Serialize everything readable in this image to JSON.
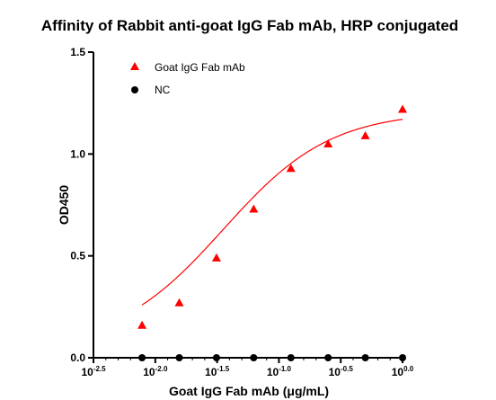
{
  "chart_data": {
    "type": "scatter",
    "title": "Affinity of  Rabbit anti-goat IgG Fab mAb, HRP conjugated",
    "xlabel": "Goat IgG Fab mAb (μg/mL)",
    "ylabel": "OD450",
    "x_scale": "log10",
    "xlim": [
      0.00316,
      1.0
    ],
    "ylim": [
      0.0,
      1.5
    ],
    "x_ticks": [
      {
        "base": "10",
        "exp": "-2.5",
        "value": 0.003162
      },
      {
        "base": "10",
        "exp": "-2.0",
        "value": 0.01
      },
      {
        "base": "10",
        "exp": "-1.5",
        "value": 0.031623
      },
      {
        "base": "10",
        "exp": "-1.0",
        "value": 0.1
      },
      {
        "base": "10",
        "exp": "-0.5",
        "value": 0.316228
      },
      {
        "base": "10",
        "exp": "0.0",
        "value": 1.0
      }
    ],
    "y_ticks": [
      "0.0",
      "0.5",
      "1.0",
      "1.5"
    ],
    "y_tick_values": [
      0.0,
      0.5,
      1.0,
      1.5
    ],
    "legend_position": "top-left",
    "series": [
      {
        "name": "Goat IgG Fab mAb",
        "marker": "triangle",
        "color": "#ff0000",
        "x": [
          0.007813,
          0.015625,
          0.03125,
          0.0625,
          0.125,
          0.25,
          0.5,
          1.0
        ],
        "y": [
          0.16,
          0.27,
          0.49,
          0.73,
          0.93,
          1.05,
          1.09,
          1.22
        ]
      },
      {
        "name": "NC",
        "marker": "circle",
        "color": "#000000",
        "x": [
          0.007813,
          0.015625,
          0.03125,
          0.0625,
          0.125,
          0.25,
          0.5,
          1.0
        ],
        "y": [
          0.0,
          0.0,
          0.0,
          0.0,
          0.0,
          0.0,
          0.0,
          0.0
        ]
      }
    ],
    "fit_curve": {
      "color": "#ff0000",
      "bottom": 0.05,
      "top": 1.21,
      "log_ec50": -1.45,
      "hill_slope": 1.0
    }
  }
}
